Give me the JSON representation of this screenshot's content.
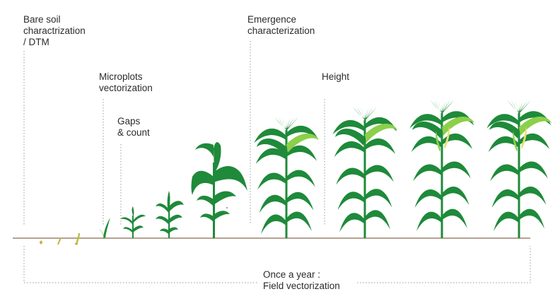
{
  "labels": {
    "bare_soil": {
      "line1": "Bare soil",
      "line2": "charactrization",
      "line3": "/ DTM"
    },
    "microplots": {
      "line1": "Microplots",
      "line2": "vectorization"
    },
    "gaps": {
      "line1": "Gaps",
      "line2": "& count"
    },
    "emergence": {
      "line1": "Emergence",
      "line2": "characterization"
    },
    "height": {
      "line1": "Height"
    },
    "bottom": {
      "line1": "Once a year :",
      "line2": "Field vectorization"
    }
  },
  "colors": {
    "text": "#2b2b2b",
    "leaf_dark": "#1e8a3a",
    "leaf_light": "#8ccf4a",
    "soil_line": "#8a6a50",
    "dotted": "#9a9a9a",
    "seed": "#c8b24a",
    "tassel": "#e6e070"
  }
}
